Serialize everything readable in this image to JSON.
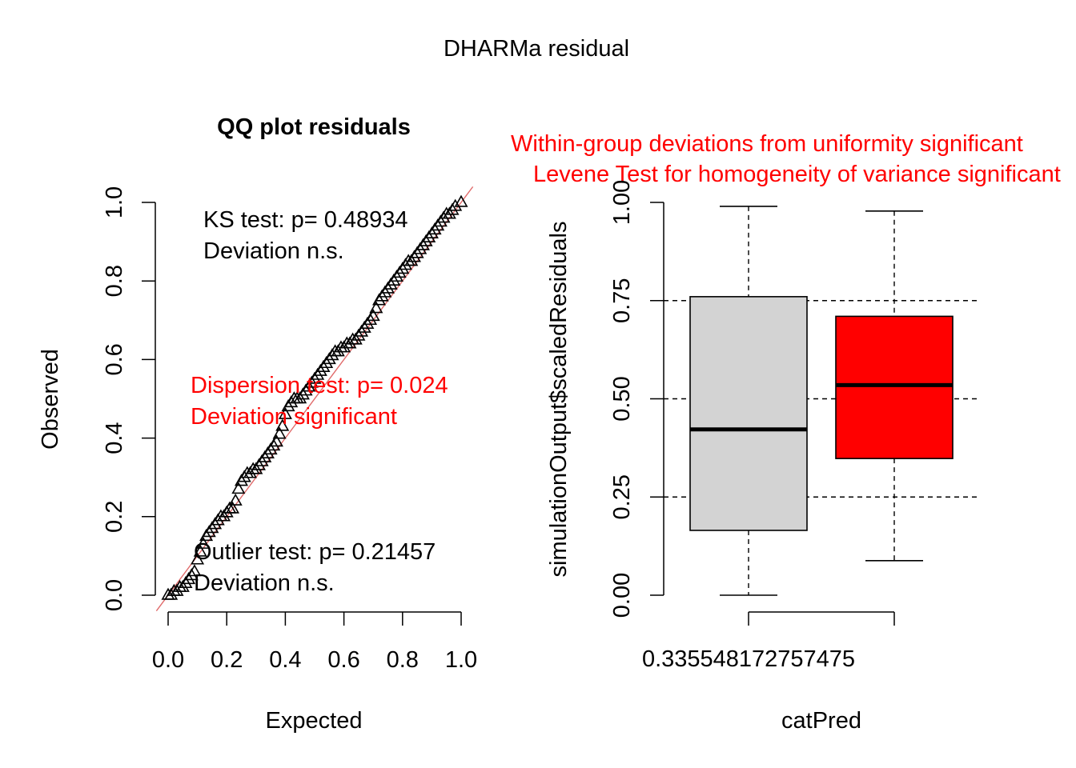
{
  "title": "DHARMa residual",
  "chart_data": [
    {
      "type": "scatter",
      "title": "QQ plot residuals",
      "xlabel": "Expected",
      "ylabel": "Observed",
      "xlim": [
        0,
        1
      ],
      "ylim": [
        0,
        1
      ],
      "xticks": [
        "0.0",
        "0.2",
        "0.4",
        "0.6",
        "0.8",
        "1.0"
      ],
      "yticks": [
        "0.0",
        "0.2",
        "0.4",
        "0.6",
        "0.8",
        "1.0"
      ],
      "marker": "triangle",
      "marker_color": "#000000",
      "reference_line": {
        "from": [
          0,
          0
        ],
        "to": [
          1,
          1
        ],
        "color": "#e06a6a"
      },
      "points": [
        [
          0.0,
          0.0
        ],
        [
          0.01,
          0.0
        ],
        [
          0.02,
          0.01
        ],
        [
          0.03,
          0.01
        ],
        [
          0.04,
          0.02
        ],
        [
          0.05,
          0.02
        ],
        [
          0.06,
          0.03
        ],
        [
          0.07,
          0.04
        ],
        [
          0.08,
          0.05
        ],
        [
          0.09,
          0.06
        ],
        [
          0.1,
          0.09
        ],
        [
          0.11,
          0.11
        ],
        [
          0.12,
          0.13
        ],
        [
          0.13,
          0.15
        ],
        [
          0.14,
          0.16
        ],
        [
          0.15,
          0.17
        ],
        [
          0.16,
          0.18
        ],
        [
          0.17,
          0.19
        ],
        [
          0.18,
          0.2
        ],
        [
          0.19,
          0.2
        ],
        [
          0.2,
          0.21
        ],
        [
          0.21,
          0.22
        ],
        [
          0.22,
          0.22
        ],
        [
          0.23,
          0.24
        ],
        [
          0.24,
          0.27
        ],
        [
          0.25,
          0.29
        ],
        [
          0.26,
          0.3
        ],
        [
          0.27,
          0.31
        ],
        [
          0.28,
          0.31
        ],
        [
          0.29,
          0.32
        ],
        [
          0.3,
          0.32
        ],
        [
          0.31,
          0.33
        ],
        [
          0.32,
          0.34
        ],
        [
          0.33,
          0.35
        ],
        [
          0.34,
          0.36
        ],
        [
          0.35,
          0.37
        ],
        [
          0.36,
          0.38
        ],
        [
          0.37,
          0.39
        ],
        [
          0.38,
          0.41
        ],
        [
          0.39,
          0.43
        ],
        [
          0.4,
          0.46
        ],
        [
          0.41,
          0.48
        ],
        [
          0.42,
          0.49
        ],
        [
          0.43,
          0.5
        ],
        [
          0.44,
          0.5
        ],
        [
          0.45,
          0.5
        ],
        [
          0.46,
          0.51
        ],
        [
          0.47,
          0.52
        ],
        [
          0.48,
          0.53
        ],
        [
          0.49,
          0.54
        ],
        [
          0.5,
          0.55
        ],
        [
          0.51,
          0.56
        ],
        [
          0.52,
          0.57
        ],
        [
          0.53,
          0.58
        ],
        [
          0.54,
          0.59
        ],
        [
          0.55,
          0.6
        ],
        [
          0.56,
          0.61
        ],
        [
          0.57,
          0.62
        ],
        [
          0.58,
          0.62
        ],
        [
          0.59,
          0.63
        ],
        [
          0.6,
          0.63
        ],
        [
          0.61,
          0.64
        ],
        [
          0.62,
          0.64
        ],
        [
          0.63,
          0.65
        ],
        [
          0.64,
          0.65
        ],
        [
          0.65,
          0.66
        ],
        [
          0.66,
          0.67
        ],
        [
          0.67,
          0.68
        ],
        [
          0.68,
          0.69
        ],
        [
          0.69,
          0.7
        ],
        [
          0.7,
          0.71
        ],
        [
          0.71,
          0.73
        ],
        [
          0.72,
          0.75
        ],
        [
          0.73,
          0.76
        ],
        [
          0.74,
          0.77
        ],
        [
          0.75,
          0.78
        ],
        [
          0.76,
          0.79
        ],
        [
          0.77,
          0.8
        ],
        [
          0.78,
          0.81
        ],
        [
          0.79,
          0.82
        ],
        [
          0.8,
          0.83
        ],
        [
          0.81,
          0.84
        ],
        [
          0.82,
          0.85
        ],
        [
          0.83,
          0.85
        ],
        [
          0.84,
          0.86
        ],
        [
          0.85,
          0.87
        ],
        [
          0.86,
          0.88
        ],
        [
          0.87,
          0.89
        ],
        [
          0.88,
          0.9
        ],
        [
          0.89,
          0.91
        ],
        [
          0.9,
          0.92
        ],
        [
          0.91,
          0.93
        ],
        [
          0.92,
          0.94
        ],
        [
          0.93,
          0.95
        ],
        [
          0.94,
          0.96
        ],
        [
          0.95,
          0.97
        ],
        [
          0.96,
          0.97
        ],
        [
          0.97,
          0.98
        ],
        [
          0.98,
          0.99
        ],
        [
          1.0,
          1.0
        ]
      ],
      "annotations": {
        "ks": {
          "line1": "KS test: p= 0.48934",
          "line2": "Deviation  n.s.",
          "color": "#000000"
        },
        "dispersion": {
          "line1": "Dispersion test: p= 0.024",
          "line2": "Deviation  significant",
          "color": "#ff0000"
        },
        "outlier": {
          "line1": "Outlier test: p= 0.21457",
          "line2": "Deviation  n.s.",
          "color": "#000000"
        }
      }
    },
    {
      "type": "boxplot",
      "title_line1": "Within-group deviations from uniformity significant",
      "title_line2": "Levene Test for homogeneity of variance significant",
      "title_color": "#ff0000",
      "xlabel": "catPred",
      "ylabel": "simulationOutput$scaledResiduals",
      "ylim": [
        0,
        1
      ],
      "yticks": [
        "0.00",
        "0.25",
        "0.50",
        "0.75",
        "1.00"
      ],
      "gridlines_y": [
        0.25,
        0.5,
        0.75
      ],
      "x_tick_label": "0.335548172757475",
      "boxes": [
        {
          "min": 0.0,
          "q1": 0.165,
          "median": 0.422,
          "q3": 0.76,
          "max": 0.99,
          "fill": "#d3d3d3"
        },
        {
          "min": 0.088,
          "q1": 0.348,
          "median": 0.535,
          "q3": 0.71,
          "max": 0.978,
          "fill": "#ff0000"
        }
      ]
    }
  ]
}
